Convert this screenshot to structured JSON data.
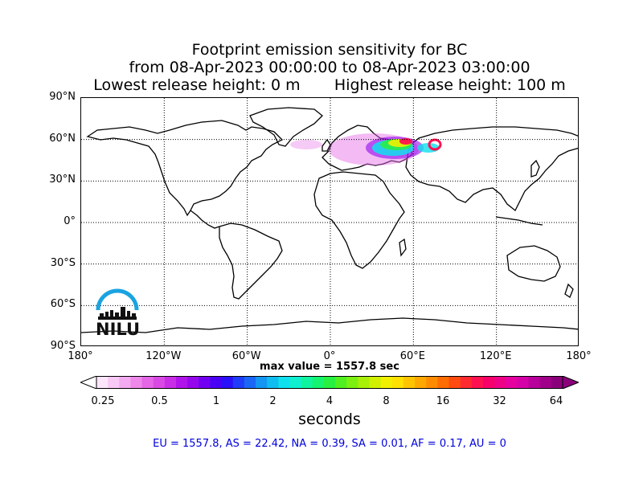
{
  "title": {
    "line1": "Footprint emission sensitivity for BC",
    "line2": "from 08-Apr-2023 00:00:00 to 08-Apr-2023 03:00:00",
    "line3": "Lowest release height: 0 m       Highest release height: 100 m"
  },
  "axes": {
    "lat_labels": [
      "90°N",
      "60°N",
      "30°N",
      "0°",
      "30°S",
      "60°S",
      "90°S"
    ],
    "lat_values": [
      90,
      60,
      30,
      0,
      -30,
      -60,
      -90
    ],
    "lon_labels": [
      "180°",
      "120°W",
      "60°W",
      "0°",
      "60°E",
      "120°E",
      "180°"
    ],
    "lon_values": [
      -180,
      -120,
      -60,
      0,
      60,
      120,
      180
    ],
    "grid": "dotted"
  },
  "max_value_text": "max value = 1557.8 sec",
  "colorbar": {
    "tick_labels": [
      "0.25",
      "0.5",
      "1",
      "2",
      "4",
      "8",
      "16",
      "32",
      "64"
    ],
    "tick_values": [
      0.25,
      0.5,
      1,
      2,
      4,
      8,
      16,
      32,
      64
    ],
    "units": "seconds",
    "colors": [
      "#fde6fb",
      "#f9c9f6",
      "#f4aaf0",
      "#ee88ea",
      "#e566e6",
      "#d94ae4",
      "#c92ee6",
      "#b114ea",
      "#9508ee",
      "#7100f2",
      "#4a00f4",
      "#2a10f8",
      "#1f3cf8",
      "#1a66f6",
      "#1496f2",
      "#10bdf0",
      "#0ee0ee",
      "#0ef0d0",
      "#10f4a0",
      "#14f470",
      "#28f040",
      "#50f020",
      "#7cf010",
      "#a8f008",
      "#d0f000",
      "#f0f000",
      "#ffe000",
      "#ffc400",
      "#ffa800",
      "#ff8c00",
      "#ff6c00",
      "#ff4a10",
      "#ff2a30",
      "#ff1050",
      "#f8006a",
      "#f00086",
      "#e600a0",
      "#d400a8",
      "#b8009a",
      "#a0008a",
      "#8a007a"
    ]
  },
  "stats_text": "EU = 1557.8,  AS = 22.42,  NA = 0.39,  SA = 0.01,  AF = 0.17,  AU = 0",
  "logo_text": "NILU",
  "colors": {
    "logo_arc": "#1aa3e0",
    "stats": "#0000dd"
  }
}
